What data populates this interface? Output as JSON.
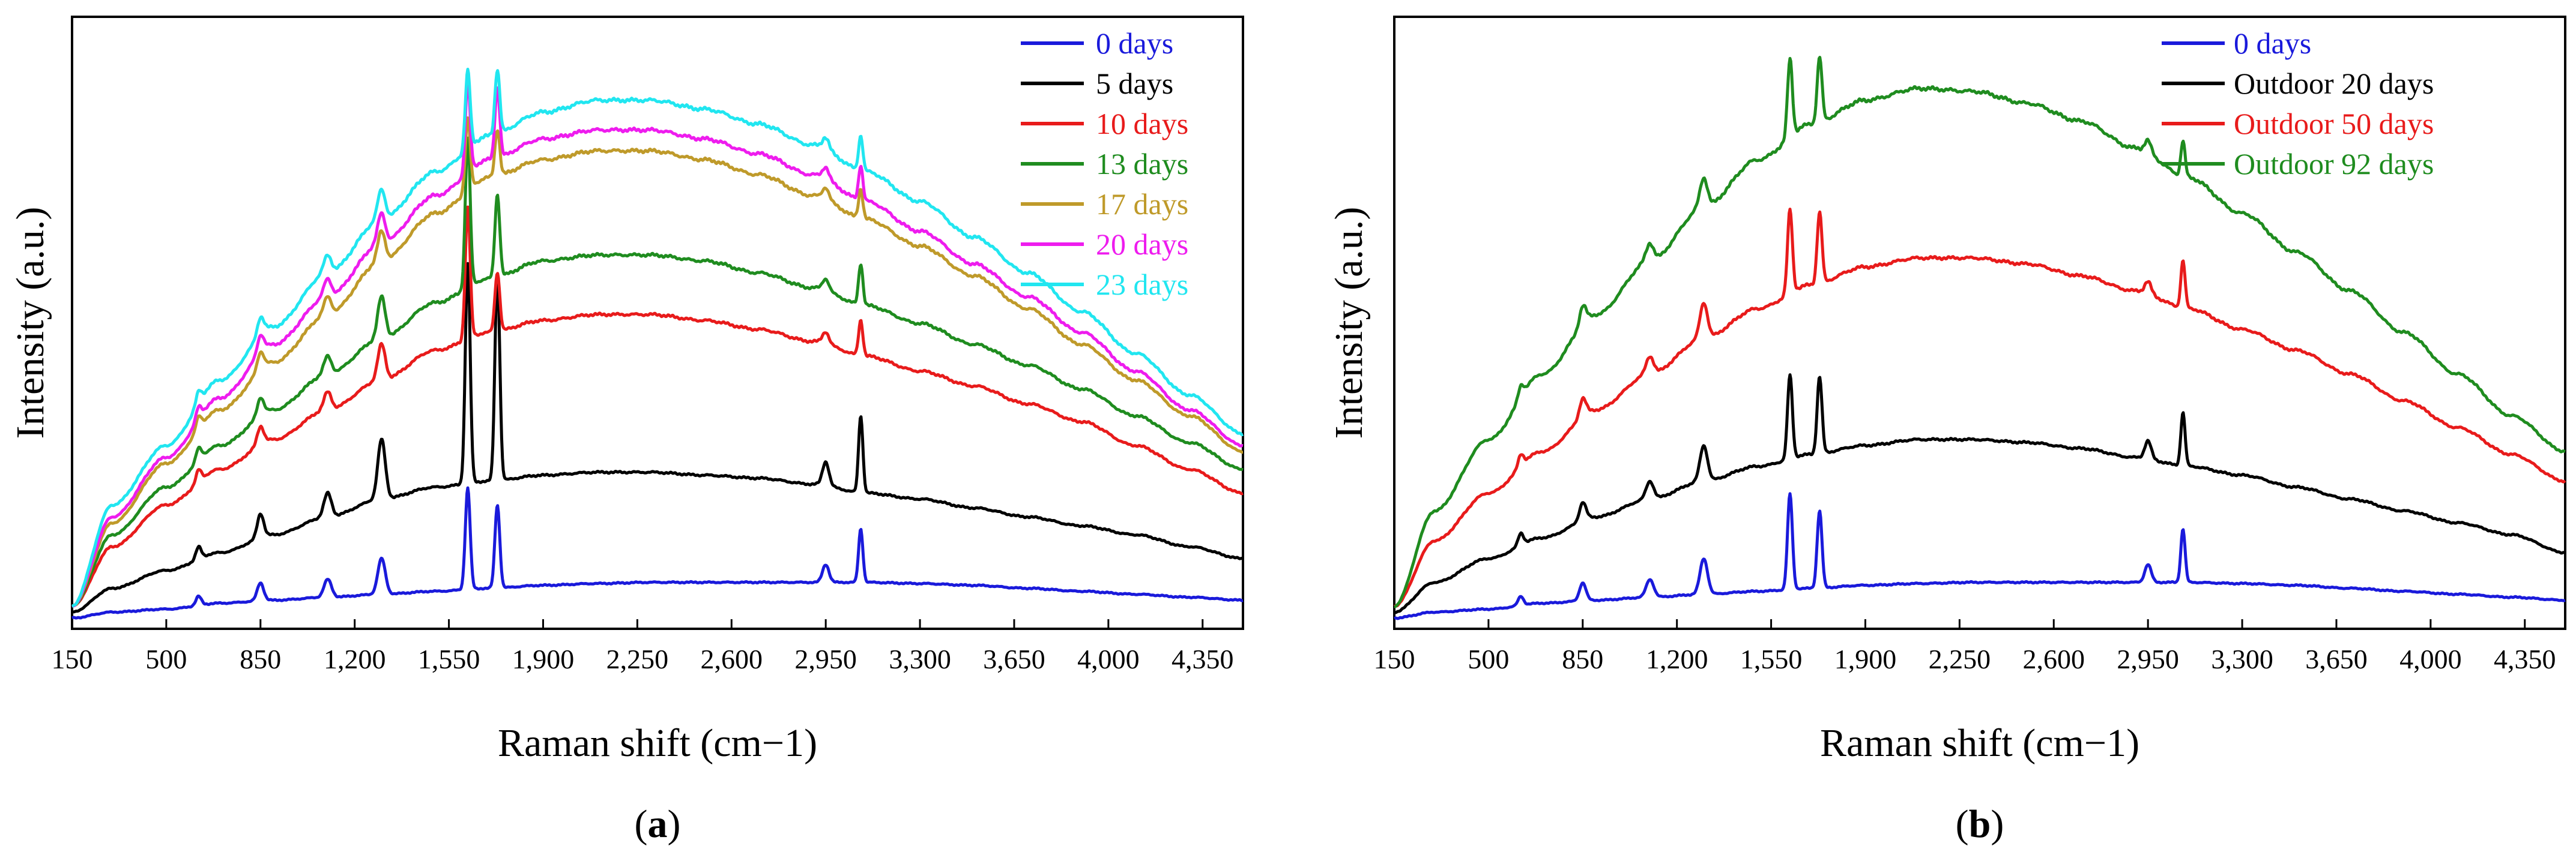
{
  "chart_data": [
    {
      "type": "line",
      "panel_label": "a",
      "xlabel": "Raman shift (cm−1)",
      "ylabel": "Intensity (a.u.)",
      "xlim": [
        150,
        4500
      ],
      "ylim": [
        0,
        100
      ],
      "x_ticks": [
        150,
        500,
        850,
        1200,
        1550,
        1900,
        2250,
        2600,
        2950,
        3300,
        3650,
        4000,
        4350
      ],
      "x_tick_labels": [
        "150",
        "500",
        "850",
        "1,200",
        "1,550",
        "1,900",
        "2,250",
        "2,600",
        "2,950",
        "3,300",
        "3,650",
        "4,000",
        "4,350"
      ],
      "legend_position": "top-right",
      "grid": false,
      "peaks_cm": [
        620,
        850,
        1100,
        1300,
        1620,
        1730,
        2950,
        3080
      ],
      "series": [
        {
          "name": "0 days",
          "color": "#1a1adb",
          "x": [
            150,
            300,
            500,
            700,
            900,
            1100,
            1300,
            1500,
            1700,
            1900,
            2100,
            2300,
            2500,
            2700,
            2900,
            3100,
            3300,
            3500,
            3700,
            3900,
            4100,
            4300,
            4500
          ],
          "y": [
            1,
            2,
            2.5,
            3.5,
            4,
            4.5,
            5,
            5.5,
            6,
            6.5,
            6.8,
            7,
            7,
            7,
            7,
            7,
            6.8,
            6.5,
            6,
            5.5,
            5,
            4.5,
            4
          ],
          "peak_heights": [
            1.5,
            3,
            3,
            6,
            17,
            14,
            3,
            9
          ]
        },
        {
          "name": "5 days",
          "color": "#000000",
          "x": [
            150,
            300,
            500,
            700,
            900,
            1100,
            1300,
            1500,
            1700,
            1900,
            2100,
            2300,
            2500,
            2700,
            2900,
            3100,
            3300,
            3500,
            3700,
            3900,
            4100,
            4300,
            4500
          ],
          "y": [
            2,
            6,
            9,
            12,
            15,
            18,
            21,
            23,
            24,
            25,
            25.5,
            25.5,
            25,
            24.5,
            23.5,
            22,
            21,
            19.5,
            18,
            16.5,
            15,
            13,
            11
          ],
          "peak_heights": [
            2,
            4,
            4,
            10,
            37,
            35,
            4,
            13
          ]
        },
        {
          "name": "10 days",
          "color": "#e81b1b",
          "x": [
            150,
            300,
            500,
            700,
            900,
            1100,
            1300,
            1500,
            1700,
            1900,
            2100,
            2300,
            2500,
            2700,
            2900,
            3100,
            3300,
            3500,
            3700,
            3900,
            4100,
            4300,
            4500
          ],
          "y": [
            3,
            13,
            20,
            26,
            31,
            36,
            41,
            46,
            49,
            51,
            52,
            52,
            51,
            49.5,
            47.5,
            45,
            42.5,
            40,
            37,
            34,
            30,
            26,
            22
          ],
          "peak_heights": [
            2,
            3,
            3,
            6,
            22,
            10,
            2,
            6
          ]
        },
        {
          "name": "13 days",
          "color": "#1f8c1f",
          "x": [
            150,
            300,
            500,
            700,
            900,
            1100,
            1300,
            1500,
            1700,
            1900,
            2100,
            2300,
            2500,
            2700,
            2900,
            3100,
            3300,
            3500,
            3700,
            3900,
            4100,
            4300,
            4500
          ],
          "y": [
            3,
            15,
            23,
            30,
            36,
            42,
            48,
            54,
            58,
            61,
            62,
            62,
            61,
            59,
            56.5,
            53.5,
            50.5,
            47,
            43.5,
            39.5,
            35,
            30.5,
            26
          ],
          "peak_heights": [
            2,
            3,
            3,
            7,
            25,
            14,
            2,
            7
          ]
        },
        {
          "name": "17 days",
          "color": "#bf9a2a",
          "x": [
            150,
            300,
            500,
            700,
            900,
            1100,
            1300,
            1500,
            1700,
            1900,
            2100,
            2300,
            2500,
            2700,
            2900,
            3100,
            3300,
            3500,
            3700,
            3900,
            4100,
            4300,
            4500
          ],
          "y": [
            3,
            17,
            27,
            36,
            44,
            52,
            61,
            69,
            75,
            78,
            79.5,
            79.5,
            78,
            75.5,
            72,
            68,
            63.5,
            58.5,
            53,
            47,
            41,
            35,
            29
          ],
          "peak_heights": [
            2,
            3,
            3,
            5,
            12,
            8,
            2,
            5
          ]
        },
        {
          "name": "20 days",
          "color": "#ee1cee",
          "x": [
            150,
            300,
            500,
            700,
            900,
            1100,
            1300,
            1500,
            1700,
            1900,
            2100,
            2300,
            2500,
            2700,
            2900,
            3100,
            3300,
            3500,
            3700,
            3900,
            4100,
            4300,
            4500
          ],
          "y": [
            3,
            18,
            28,
            38,
            47,
            55,
            64,
            72,
            78,
            81.5,
            83,
            83,
            81.5,
            79,
            75.5,
            71,
            66,
            60.5,
            55,
            49,
            42.5,
            36,
            30
          ],
          "peak_heights": [
            2,
            3,
            3,
            5,
            15,
            12,
            2,
            6
          ]
        },
        {
          "name": "23 days",
          "color": "#21e6f0",
          "x": [
            150,
            300,
            500,
            700,
            900,
            1100,
            1300,
            1500,
            1700,
            1900,
            2100,
            2300,
            2500,
            2700,
            2900,
            3100,
            3300,
            3500,
            3700,
            3900,
            4100,
            4300,
            4500
          ],
          "y": [
            3,
            20,
            30,
            41,
            50,
            59,
            68,
            76,
            82,
            86,
            88,
            88,
            86.5,
            84,
            80.5,
            76,
            71,
            65,
            59,
            52.5,
            45.5,
            38.5,
            32
          ],
          "peak_heights": [
            2,
            3,
            3,
            5,
            13,
            11,
            2,
            6
          ]
        }
      ]
    },
    {
      "type": "line",
      "panel_label": "b",
      "xlabel": "Raman shift (cm−1)",
      "ylabel": "Intensity (a.u.)",
      "xlim": [
        150,
        4500
      ],
      "ylim": [
        0,
        100
      ],
      "x_ticks": [
        150,
        500,
        850,
        1200,
        1550,
        1900,
        2250,
        2600,
        2950,
        3300,
        3650,
        4000,
        4350
      ],
      "x_tick_labels": [
        "150",
        "500",
        "850",
        "1,200",
        "1,550",
        "1,900",
        "2,250",
        "2,600",
        "2,950",
        "3,300",
        "3,650",
        "4,000",
        "4,350"
      ],
      "legend_position": "top-right",
      "grid": false,
      "peaks_cm": [
        620,
        850,
        1100,
        1300,
        1620,
        1730,
        2950,
        3080
      ],
      "series": [
        {
          "name": "0 days",
          "color": "#1a1adb",
          "x": [
            150,
            300,
            500,
            700,
            900,
            1100,
            1300,
            1500,
            1700,
            1900,
            2100,
            2300,
            2500,
            2700,
            2900,
            3100,
            3300,
            3500,
            3700,
            3900,
            4100,
            4300,
            4500
          ],
          "y": [
            1,
            2,
            2.5,
            3.5,
            4,
            4.5,
            5,
            5.5,
            6,
            6.5,
            6.8,
            7,
            7,
            7,
            7,
            7,
            6.8,
            6.5,
            6,
            5.5,
            5,
            4.5,
            4
          ],
          "peak_heights": [
            1.5,
            3,
            3,
            6,
            16,
            13,
            3,
            9
          ]
        },
        {
          "name": "Outdoor 20 days",
          "color": "#000000",
          "x": [
            150,
            300,
            500,
            700,
            900,
            1100,
            1300,
            1500,
            1700,
            1900,
            2100,
            2300,
            2500,
            2700,
            2900,
            3100,
            3300,
            3500,
            3700,
            3900,
            4100,
            4300,
            4500
          ],
          "y": [
            2,
            7,
            11,
            14.5,
            18,
            21,
            24,
            26.5,
            28.5,
            30,
            31,
            31,
            30.5,
            29.5,
            28,
            26.5,
            25,
            23,
            21,
            19,
            17,
            15,
            12
          ],
          "peak_heights": [
            2,
            3,
            3,
            6,
            14,
            13,
            3,
            9
          ]
        },
        {
          "name": "Outdoor 50 days",
          "color": "#e81b1b",
          "x": [
            150,
            300,
            500,
            700,
            900,
            1100,
            1300,
            1500,
            1700,
            1900,
            2100,
            2300,
            2500,
            2700,
            2900,
            3100,
            3300,
            3500,
            3700,
            3900,
            4100,
            4300,
            4500
          ],
          "y": [
            3,
            14,
            22,
            29,
            36,
            42,
            48,
            53,
            57,
            60,
            61.5,
            61.5,
            60.5,
            58.5,
            56,
            53,
            49.5,
            46,
            42,
            37.5,
            33,
            28.5,
            24
          ],
          "peak_heights": [
            2,
            3,
            3,
            6,
            14,
            12,
            2,
            8
          ]
        },
        {
          "name": "Outdoor 92 days",
          "color": "#1f8c1f",
          "x": [
            150,
            300,
            500,
            700,
            900,
            1100,
            1300,
            1500,
            1700,
            1900,
            2100,
            2300,
            2500,
            2700,
            2900,
            3100,
            3300,
            3500,
            3700,
            3900,
            4100,
            4300,
            4500
          ],
          "y": [
            3,
            19,
            31,
            42,
            52,
            61,
            70,
            78,
            84,
            88,
            90,
            89.5,
            87.5,
            84.5,
            80,
            75,
            69,
            62.5,
            56,
            49,
            42,
            35,
            29
          ],
          "peak_heights": [
            2,
            3,
            3,
            5,
            13,
            11,
            2,
            6
          ]
        }
      ]
    }
  ],
  "captions": {
    "a": "a",
    "b": "b"
  }
}
